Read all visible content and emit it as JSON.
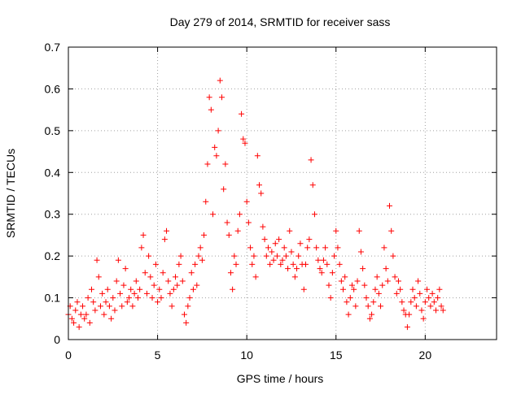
{
  "chart_data": {
    "type": "scatter",
    "title": "Day 279 of 2014, SRMTID for receiver sass",
    "xlabel": "GPS time / hours",
    "ylabel": "SRMTID / TECUs",
    "xlim": [
      0,
      24
    ],
    "ylim": [
      0,
      0.7
    ],
    "xticks": [
      0,
      5,
      10,
      15,
      20
    ],
    "xtick_labels": [
      "0",
      "5",
      "10",
      "15",
      "20"
    ],
    "yticks": [
      0,
      0.1,
      0.2,
      0.3,
      0.4,
      0.5,
      0.6,
      0.7
    ],
    "ytick_labels": [
      "0",
      "0.1",
      "0.2",
      "0.3",
      "0.4",
      "0.5",
      "0.6",
      "0.7"
    ],
    "grid": true,
    "marker": "+",
    "color": "#ff0000",
    "series": [
      {
        "name": "SRMTID",
        "points": [
          [
            0.0,
            0.06
          ],
          [
            0.1,
            0.08
          ],
          [
            0.2,
            0.05
          ],
          [
            0.3,
            0.04
          ],
          [
            0.4,
            0.07
          ],
          [
            0.5,
            0.09
          ],
          [
            0.6,
            0.03
          ],
          [
            0.7,
            0.06
          ],
          [
            0.8,
            0.08
          ],
          [
            0.9,
            0.05
          ],
          [
            1.0,
            0.06
          ],
          [
            1.1,
            0.1
          ],
          [
            1.2,
            0.04
          ],
          [
            1.3,
            0.12
          ],
          [
            1.4,
            0.09
          ],
          [
            1.5,
            0.07
          ],
          [
            1.6,
            0.19
          ],
          [
            1.7,
            0.15
          ],
          [
            1.8,
            0.08
          ],
          [
            1.9,
            0.11
          ],
          [
            2.0,
            0.06
          ],
          [
            2.1,
            0.09
          ],
          [
            2.2,
            0.12
          ],
          [
            2.3,
            0.08
          ],
          [
            2.4,
            0.05
          ],
          [
            2.5,
            0.1
          ],
          [
            2.6,
            0.07
          ],
          [
            2.7,
            0.14
          ],
          [
            2.8,
            0.19
          ],
          [
            2.9,
            0.11
          ],
          [
            3.0,
            0.08
          ],
          [
            3.1,
            0.13
          ],
          [
            3.2,
            0.17
          ],
          [
            3.3,
            0.09
          ],
          [
            3.4,
            0.1
          ],
          [
            3.5,
            0.12
          ],
          [
            3.6,
            0.08
          ],
          [
            3.7,
            0.11
          ],
          [
            3.8,
            0.14
          ],
          [
            3.9,
            0.1
          ],
          [
            4.0,
            0.12
          ],
          [
            4.1,
            0.22
          ],
          [
            4.2,
            0.25
          ],
          [
            4.3,
            0.16
          ],
          [
            4.4,
            0.11
          ],
          [
            4.5,
            0.2
          ],
          [
            4.6,
            0.15
          ],
          [
            4.7,
            0.1
          ],
          [
            4.8,
            0.13
          ],
          [
            4.9,
            0.18
          ],
          [
            5.0,
            0.09
          ],
          [
            5.1,
            0.12
          ],
          [
            5.2,
            0.1
          ],
          [
            5.3,
            0.16
          ],
          [
            5.4,
            0.24
          ],
          [
            5.5,
            0.26
          ],
          [
            5.6,
            0.14
          ],
          [
            5.7,
            0.11
          ],
          [
            5.8,
            0.08
          ],
          [
            5.9,
            0.12
          ],
          [
            6.0,
            0.15
          ],
          [
            6.1,
            0.13
          ],
          [
            6.2,
            0.18
          ],
          [
            6.3,
            0.2
          ],
          [
            6.4,
            0.14
          ],
          [
            6.5,
            0.06
          ],
          [
            6.6,
            0.04
          ],
          [
            6.7,
            0.08
          ],
          [
            6.8,
            0.1
          ],
          [
            6.9,
            0.16
          ],
          [
            7.0,
            0.12
          ],
          [
            7.1,
            0.18
          ],
          [
            7.2,
            0.13
          ],
          [
            7.3,
            0.2
          ],
          [
            7.4,
            0.22
          ],
          [
            7.5,
            0.19
          ],
          [
            7.6,
            0.25
          ],
          [
            7.7,
            0.33
          ],
          [
            7.8,
            0.42
          ],
          [
            7.9,
            0.58
          ],
          [
            8.0,
            0.55
          ],
          [
            8.1,
            0.3
          ],
          [
            8.2,
            0.46
          ],
          [
            8.3,
            0.44
          ],
          [
            8.4,
            0.5
          ],
          [
            8.5,
            0.62
          ],
          [
            8.6,
            0.58
          ],
          [
            8.7,
            0.36
          ],
          [
            8.8,
            0.42
          ],
          [
            8.9,
            0.28
          ],
          [
            9.0,
            0.25
          ],
          [
            9.1,
            0.16
          ],
          [
            9.2,
            0.12
          ],
          [
            9.3,
            0.2
          ],
          [
            9.4,
            0.18
          ],
          [
            9.5,
            0.26
          ],
          [
            9.6,
            0.3
          ],
          [
            9.7,
            0.54
          ],
          [
            9.8,
            0.48
          ],
          [
            9.9,
            0.47
          ],
          [
            10.0,
            0.33
          ],
          [
            10.1,
            0.28
          ],
          [
            10.2,
            0.22
          ],
          [
            10.3,
            0.18
          ],
          [
            10.4,
            0.2
          ],
          [
            10.5,
            0.15
          ],
          [
            10.6,
            0.44
          ],
          [
            10.7,
            0.37
          ],
          [
            10.8,
            0.35
          ],
          [
            10.9,
            0.27
          ],
          [
            11.0,
            0.24
          ],
          [
            11.1,
            0.2
          ],
          [
            11.2,
            0.22
          ],
          [
            11.3,
            0.18
          ],
          [
            11.4,
            0.21
          ],
          [
            11.5,
            0.19
          ],
          [
            11.6,
            0.23
          ],
          [
            11.7,
            0.2
          ],
          [
            11.8,
            0.24
          ],
          [
            11.9,
            0.18
          ],
          [
            12.0,
            0.19
          ],
          [
            12.1,
            0.22
          ],
          [
            12.2,
            0.2
          ],
          [
            12.3,
            0.17
          ],
          [
            12.4,
            0.26
          ],
          [
            12.5,
            0.21
          ],
          [
            12.6,
            0.18
          ],
          [
            12.7,
            0.15
          ],
          [
            12.8,
            0.17
          ],
          [
            12.9,
            0.2
          ],
          [
            13.0,
            0.23
          ],
          [
            13.1,
            0.18
          ],
          [
            13.2,
            0.12
          ],
          [
            13.3,
            0.18
          ],
          [
            13.4,
            0.22
          ],
          [
            13.5,
            0.24
          ],
          [
            13.6,
            0.43
          ],
          [
            13.7,
            0.37
          ],
          [
            13.8,
            0.3
          ],
          [
            13.9,
            0.22
          ],
          [
            14.0,
            0.19
          ],
          [
            14.1,
            0.17
          ],
          [
            14.2,
            0.16
          ],
          [
            14.3,
            0.19
          ],
          [
            14.4,
            0.22
          ],
          [
            14.5,
            0.18
          ],
          [
            14.6,
            0.13
          ],
          [
            14.7,
            0.1
          ],
          [
            14.8,
            0.16
          ],
          [
            14.9,
            0.2
          ],
          [
            15.0,
            0.26
          ],
          [
            15.1,
            0.22
          ],
          [
            15.2,
            0.18
          ],
          [
            15.3,
            0.14
          ],
          [
            15.4,
            0.12
          ],
          [
            15.5,
            0.15
          ],
          [
            15.6,
            0.09
          ],
          [
            15.7,
            0.06
          ],
          [
            15.8,
            0.1
          ],
          [
            15.9,
            0.13
          ],
          [
            16.0,
            0.12
          ],
          [
            16.1,
            0.08
          ],
          [
            16.2,
            0.14
          ],
          [
            16.3,
            0.26
          ],
          [
            16.4,
            0.21
          ],
          [
            16.5,
            0.17
          ],
          [
            16.6,
            0.13
          ],
          [
            16.7,
            0.1
          ],
          [
            16.8,
            0.08
          ],
          [
            16.9,
            0.05
          ],
          [
            17.0,
            0.06
          ],
          [
            17.1,
            0.09
          ],
          [
            17.2,
            0.12
          ],
          [
            17.3,
            0.15
          ],
          [
            17.4,
            0.11
          ],
          [
            17.5,
            0.08
          ],
          [
            17.6,
            0.13
          ],
          [
            17.7,
            0.22
          ],
          [
            17.8,
            0.17
          ],
          [
            17.9,
            0.14
          ],
          [
            18.0,
            0.32
          ],
          [
            18.1,
            0.26
          ],
          [
            18.2,
            0.2
          ],
          [
            18.3,
            0.15
          ],
          [
            18.4,
            0.11
          ],
          [
            18.5,
            0.14
          ],
          [
            18.6,
            0.12
          ],
          [
            18.7,
            0.09
          ],
          [
            18.8,
            0.07
          ],
          [
            18.9,
            0.06
          ],
          [
            19.0,
            0.03
          ],
          [
            19.1,
            0.06
          ],
          [
            19.2,
            0.09
          ],
          [
            19.3,
            0.12
          ],
          [
            19.4,
            0.1
          ],
          [
            19.5,
            0.08
          ],
          [
            19.6,
            0.14
          ],
          [
            19.7,
            0.11
          ],
          [
            19.8,
            0.07
          ],
          [
            19.9,
            0.05
          ],
          [
            20.0,
            0.09
          ],
          [
            20.1,
            0.12
          ],
          [
            20.2,
            0.1
          ],
          [
            20.3,
            0.08
          ],
          [
            20.4,
            0.11
          ],
          [
            20.5,
            0.09
          ],
          [
            20.6,
            0.07
          ],
          [
            20.7,
            0.1
          ],
          [
            20.8,
            0.12
          ],
          [
            20.9,
            0.08
          ],
          [
            21.0,
            0.07
          ]
        ]
      }
    ]
  }
}
